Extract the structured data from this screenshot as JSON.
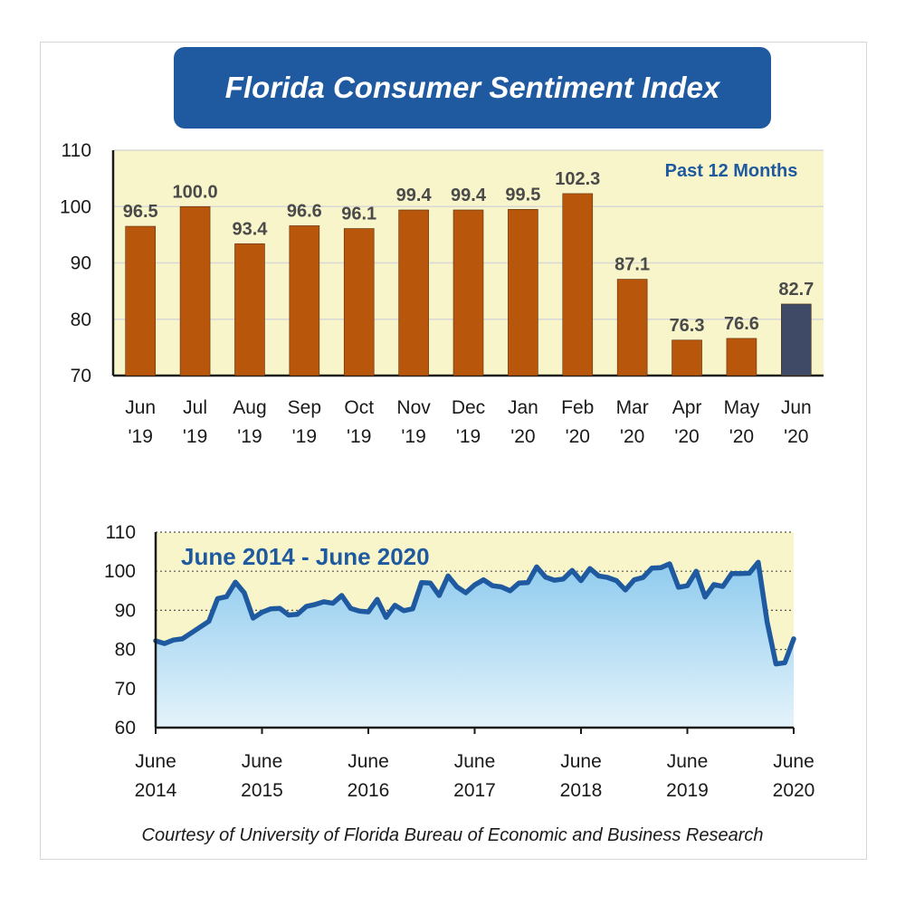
{
  "title": "Florida Consumer Sentiment Index",
  "caption": "Courtesy of University of Florida Bureau of Economic and Business Research",
  "colors": {
    "bar": "#b8560c",
    "bar_current": "#3e4a66",
    "plot_bg": "#f7f5c9",
    "line": "#1f5aa0",
    "area_top": "#8fcbee",
    "area_bottom": "#e4f3fb",
    "title_bg": "#1f5aa0"
  },
  "chart_data": [
    {
      "type": "bar",
      "annotation": "Past 12 Months",
      "categories": [
        [
          "Jun",
          "'19"
        ],
        [
          "Jul",
          "'19"
        ],
        [
          "Aug",
          "'19"
        ],
        [
          "Sep",
          "'19"
        ],
        [
          "Oct",
          "'19"
        ],
        [
          "Nov",
          "'19"
        ],
        [
          "Dec",
          "'19"
        ],
        [
          "Jan",
          "'20"
        ],
        [
          "Feb",
          "'20"
        ],
        [
          "Mar",
          "'20"
        ],
        [
          "Apr",
          "'20"
        ],
        [
          "May",
          "'20"
        ],
        [
          "Jun",
          "'20"
        ]
      ],
      "values": [
        96.5,
        100.0,
        93.4,
        96.6,
        96.1,
        99.4,
        99.4,
        99.5,
        102.3,
        87.1,
        76.3,
        76.6,
        82.7
      ],
      "value_labels": [
        "96.5",
        "100.0",
        "93.4",
        "96.6",
        "96.1",
        "99.4",
        "99.4",
        "99.5",
        "102.3",
        "87.1",
        "76.3",
        "76.6",
        "82.7"
      ],
      "highlight_index": 12,
      "ylim": [
        70,
        110
      ],
      "yticks": [
        70,
        80,
        90,
        100,
        110
      ],
      "grid": true
    },
    {
      "type": "area",
      "annotation": "June 2014 - June 2020",
      "x_labels": [
        [
          "June",
          "2014"
        ],
        [
          "June",
          "2015"
        ],
        [
          "June",
          "2016"
        ],
        [
          "June",
          "2017"
        ],
        [
          "June",
          "2018"
        ],
        [
          "June",
          "2019"
        ],
        [
          "June",
          "2020"
        ]
      ],
      "ylim": [
        60,
        110
      ],
      "yticks": [
        60,
        70,
        80,
        90,
        100,
        110
      ],
      "grid": true,
      "values": [
        82.2,
        81.5,
        82.4,
        82.7,
        84.2,
        85.7,
        87.2,
        93.0,
        93.5,
        97.2,
        94.5,
        88.0,
        89.5,
        90.4,
        90.5,
        88.8,
        89.0,
        91.0,
        91.5,
        92.2,
        91.8,
        93.8,
        90.5,
        89.8,
        89.6,
        92.8,
        88.2,
        91.3,
        89.9,
        90.4,
        97.1,
        97.0,
        93.8,
        98.8,
        96.0,
        94.5,
        96.5,
        97.8,
        96.3,
        96.0,
        95.0,
        97.0,
        97.1,
        101.1,
        98.5,
        97.7,
        98.0,
        100.2,
        97.6,
        100.7,
        98.8,
        98.4,
        97.6,
        95.2,
        97.8,
        98.4,
        100.8,
        100.9,
        101.9,
        95.9,
        96.3,
        100.0,
        93.4,
        96.6,
        96.1,
        99.4,
        99.4,
        99.5,
        102.3,
        87.1,
        76.3,
        76.6,
        82.7
      ]
    }
  ]
}
